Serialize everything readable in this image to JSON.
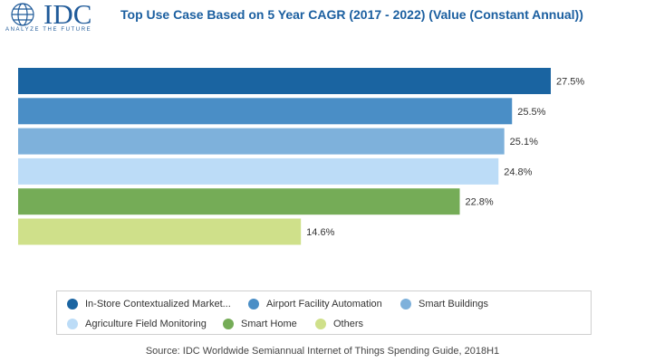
{
  "logo": {
    "name": "IDC",
    "tagline": "ANALYZE THE FUTURE"
  },
  "title": "Top Use Case Based on 5 Year CAGR  (2017 - 2022) (Value (Constant Annual))",
  "chart_data": {
    "type": "bar",
    "orientation": "horizontal",
    "title": "Top Use Case Based on 5 Year CAGR  (2017 - 2022) (Value (Constant Annual))",
    "categories": [
      "In-Store Contextualized Market...",
      "Airport Facility Automation",
      "Smart Buildings",
      "Agriculture Field Monitoring",
      "Smart Home",
      "Others"
    ],
    "values": [
      27.5,
      25.5,
      25.1,
      24.8,
      22.8,
      14.6
    ],
    "value_labels": [
      "27.5%",
      "25.5%",
      "25.1%",
      "24.8%",
      "22.8%",
      "14.6%"
    ],
    "colors": [
      "#1a64a1",
      "#4a8ec6",
      "#7eb1db",
      "#bcdcf7",
      "#75ac57",
      "#cfe08a"
    ],
    "xlim": [
      0,
      27.5
    ],
    "unit": "%",
    "legend_position": "bottom",
    "grid": false
  },
  "legend": [
    {
      "label": "In-Store Contextualized Market...",
      "color": "#1a64a1"
    },
    {
      "label": "Airport Facility Automation",
      "color": "#4a8ec6"
    },
    {
      "label": "Smart Buildings",
      "color": "#7eb1db"
    },
    {
      "label": "Agriculture Field Monitoring",
      "color": "#bcdcf7"
    },
    {
      "label": "Smart Home",
      "color": "#75ac57"
    },
    {
      "label": "Others",
      "color": "#cfe08a"
    }
  ],
  "source": "Source: IDC Worldwide Semiannual Internet of Things Spending Guide, 2018H1"
}
